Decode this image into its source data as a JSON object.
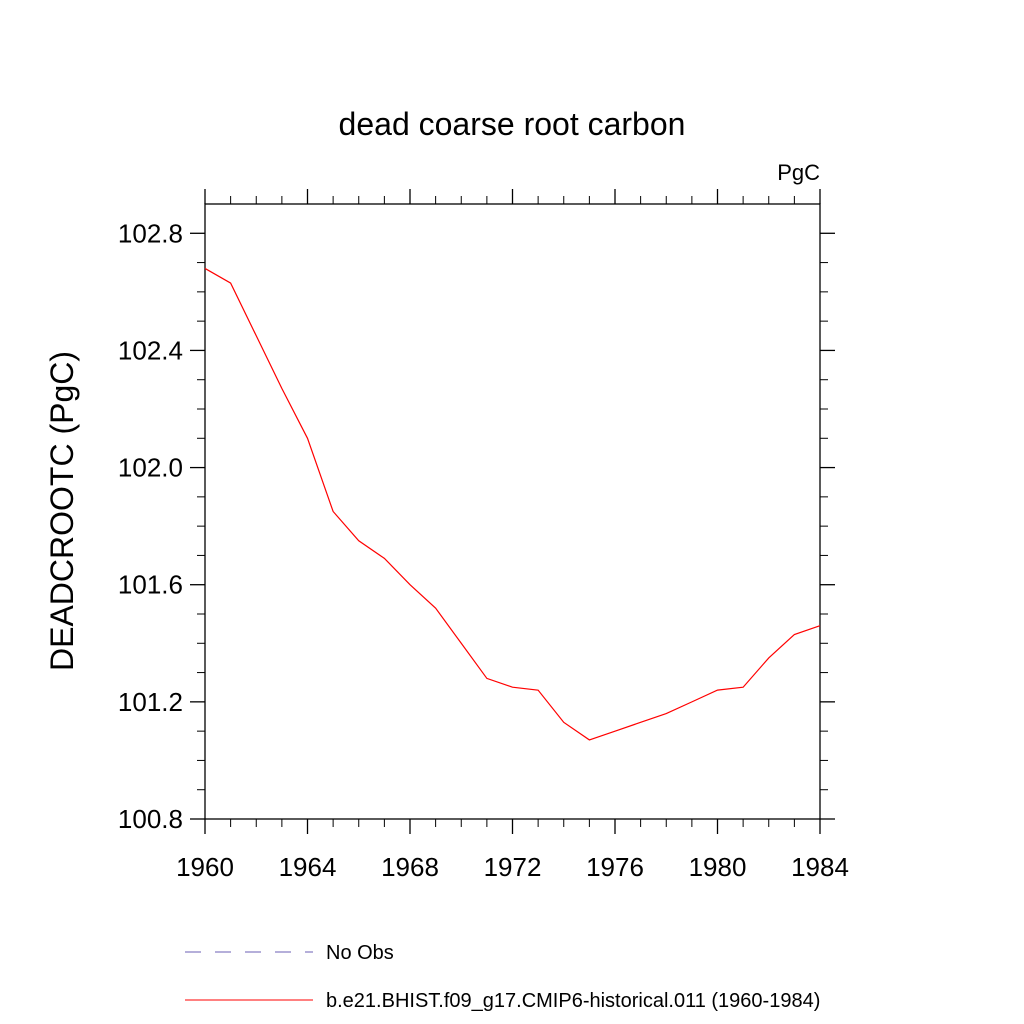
{
  "chart_data": {
    "type": "line",
    "title": "dead coarse root carbon",
    "units_label": "PgC",
    "ylabel": "DEADCROOTC  (PgC)",
    "xlabel": "",
    "xlim": [
      1960,
      1984
    ],
    "ylim": [
      100.8,
      102.9
    ],
    "x_ticks": [
      "1960",
      "1964",
      "1968",
      "1972",
      "1976",
      "1980",
      "1984"
    ],
    "y_ticks": [
      "100.8",
      "101.2",
      "101.6",
      "102.0",
      "102.4",
      "102.8"
    ],
    "grid": false,
    "legend_position": "bottom",
    "legend": [
      {
        "label": "No Obs",
        "color": "#6b5fb5",
        "style": "dashed"
      },
      {
        "label": "b.e21.BHIST.f09_g17.CMIP6-historical.011 (1960-1984)",
        "color": "#ff0000",
        "style": "solid"
      }
    ],
    "series": [
      {
        "name": "b.e21.BHIST.f09_g17.CMIP6-historical.011 (1960-1984)",
        "color": "#ff0000",
        "x": [
          1960,
          1961,
          1962,
          1963,
          1964,
          1965,
          1966,
          1967,
          1968,
          1969,
          1970,
          1971,
          1972,
          1973,
          1974,
          1975,
          1976,
          1977,
          1978,
          1979,
          1980,
          1981,
          1982,
          1983,
          1984
        ],
        "values": [
          102.68,
          102.63,
          102.45,
          102.27,
          102.1,
          101.85,
          101.75,
          101.69,
          101.6,
          101.52,
          101.4,
          101.28,
          101.25,
          101.24,
          101.13,
          101.07,
          101.1,
          101.13,
          101.16,
          101.2,
          101.24,
          101.25,
          101.35,
          101.43,
          101.46
        ]
      }
    ]
  }
}
